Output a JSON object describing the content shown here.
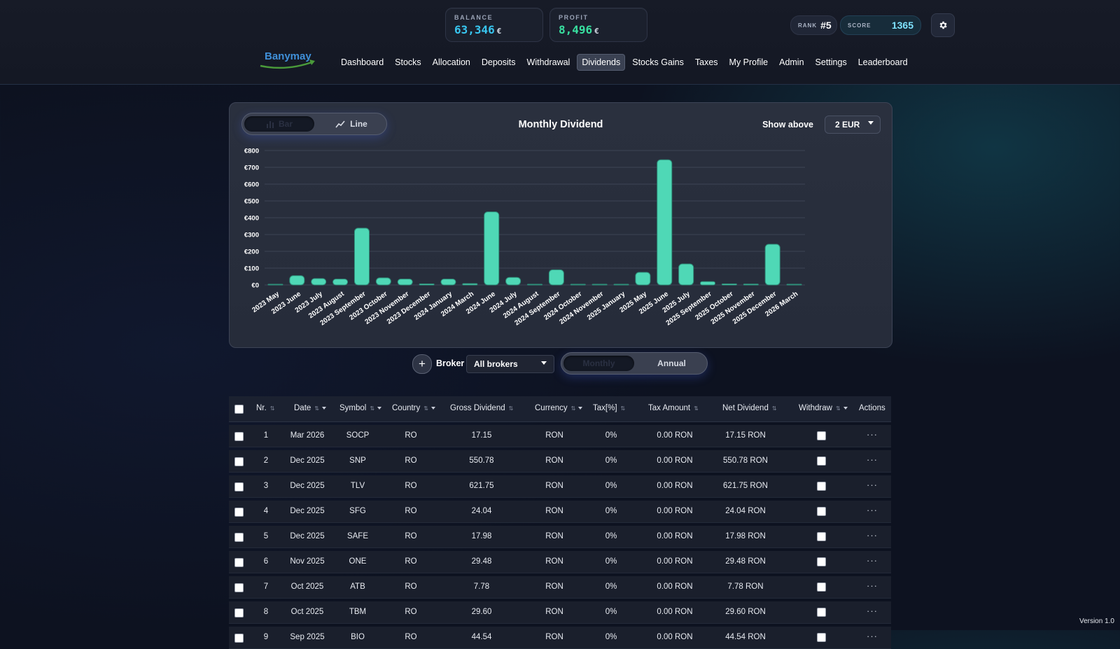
{
  "header": {
    "balance": {
      "label": "BALANCE",
      "value": "63,346",
      "currency": "€"
    },
    "profit": {
      "label": "PROFIT",
      "value": "8,496",
      "currency": "€"
    },
    "rank": {
      "label": "RANK",
      "value": "#5"
    },
    "score": {
      "label": "SCORE",
      "value": "1365"
    },
    "logo_text": "Banymay",
    "nav": [
      "Dashboard",
      "Stocks",
      "Allocation",
      "Deposits",
      "Withdrawal",
      "Dividends",
      "Stocks Gains",
      "Taxes",
      "My Profile",
      "Admin",
      "Settings",
      "Leaderboard"
    ],
    "active_nav": "Dividends"
  },
  "chart_card": {
    "toggle": {
      "bar_label": "Bar",
      "line_label": "Line",
      "selected": "Bar"
    },
    "show_above_label": "Show above",
    "show_above_value": "2 EUR"
  },
  "chart_data": {
    "type": "bar",
    "title": "Monthly Dividend",
    "xlabel": "",
    "ylabel": "",
    "ylim": [
      0,
      800
    ],
    "yticks": [
      "€0",
      "€100",
      "€200",
      "€300",
      "€400",
      "€500",
      "€600",
      "€700",
      "€800"
    ],
    "grid": true,
    "categories": [
      "2023 May",
      "2023 June",
      "2023 July",
      "2023 August",
      "2023 September",
      "2023 October",
      "2023 November",
      "2023 December",
      "2024 January",
      "2024 March",
      "2024 June",
      "2024 July",
      "2024 August",
      "2024 September",
      "2024 October",
      "2024 November",
      "2025 January",
      "2025 May",
      "2025 June",
      "2025 July",
      "2025 September",
      "2025 October",
      "2025 November",
      "2025 December",
      "2026 March"
    ],
    "values": [
      2,
      55,
      38,
      35,
      338,
      42,
      35,
      6,
      35,
      8,
      435,
      45,
      3,
      90,
      4,
      4,
      3,
      75,
      745,
      125,
      20,
      6,
      5,
      242,
      2
    ],
    "color": "#4fd8b6"
  },
  "filters": {
    "broker_label": "Broker",
    "broker_value": "All brokers",
    "period": {
      "monthly_label": "Monthly",
      "annual_label": "Annual",
      "selected": "Monthly"
    }
  },
  "table": {
    "columns": [
      "Nr.",
      "Date",
      "Symbol",
      "Country",
      "Gross Dividend",
      "Currency",
      "Tax[%]",
      "Tax Amount",
      "Net Dividend",
      "Withdraw",
      "Actions"
    ],
    "rows": [
      {
        "nr": "1",
        "date": "Mar 2026",
        "symbol": "SOCP",
        "country": "RO",
        "gross": "17.15",
        "currency": "RON",
        "tax_pct": "0%",
        "tax_amount": "0.00 RON",
        "net": "17.15 RON"
      },
      {
        "nr": "2",
        "date": "Dec 2025",
        "symbol": "SNP",
        "country": "RO",
        "gross": "550.78",
        "currency": "RON",
        "tax_pct": "0%",
        "tax_amount": "0.00 RON",
        "net": "550.78 RON"
      },
      {
        "nr": "3",
        "date": "Dec 2025",
        "symbol": "TLV",
        "country": "RO",
        "gross": "621.75",
        "currency": "RON",
        "tax_pct": "0%",
        "tax_amount": "0.00 RON",
        "net": "621.75 RON"
      },
      {
        "nr": "4",
        "date": "Dec 2025",
        "symbol": "SFG",
        "country": "RO",
        "gross": "24.04",
        "currency": "RON",
        "tax_pct": "0%",
        "tax_amount": "0.00 RON",
        "net": "24.04 RON"
      },
      {
        "nr": "5",
        "date": "Dec 2025",
        "symbol": "SAFE",
        "country": "RO",
        "gross": "17.98",
        "currency": "RON",
        "tax_pct": "0%",
        "tax_amount": "0.00 RON",
        "net": "17.98 RON"
      },
      {
        "nr": "6",
        "date": "Nov 2025",
        "symbol": "ONE",
        "country": "RO",
        "gross": "29.48",
        "currency": "RON",
        "tax_pct": "0%",
        "tax_amount": "0.00 RON",
        "net": "29.48 RON"
      },
      {
        "nr": "7",
        "date": "Oct 2025",
        "symbol": "ATB",
        "country": "RO",
        "gross": "7.78",
        "currency": "RON",
        "tax_pct": "0%",
        "tax_amount": "0.00 RON",
        "net": "7.78 RON"
      },
      {
        "nr": "8",
        "date": "Oct 2025",
        "symbol": "TBM",
        "country": "RO",
        "gross": "29.60",
        "currency": "RON",
        "tax_pct": "0%",
        "tax_amount": "0.00 RON",
        "net": "29.60 RON"
      },
      {
        "nr": "9",
        "date": "Sep 2025",
        "symbol": "BIO",
        "country": "RO",
        "gross": "44.54",
        "currency": "RON",
        "tax_pct": "0%",
        "tax_amount": "0.00 RON",
        "net": "44.54 RON"
      }
    ]
  },
  "footer": {
    "version": "Version 1.0"
  },
  "icons": {
    "settings": "gear-icon",
    "bar_chart": "bar-chart-icon",
    "line_chart": "line-chart-icon",
    "add": "plus-icon",
    "row_actions": "more-horizontal-icon",
    "sort": "sort-arrows-icon",
    "filter": "filter-caret-icon"
  }
}
